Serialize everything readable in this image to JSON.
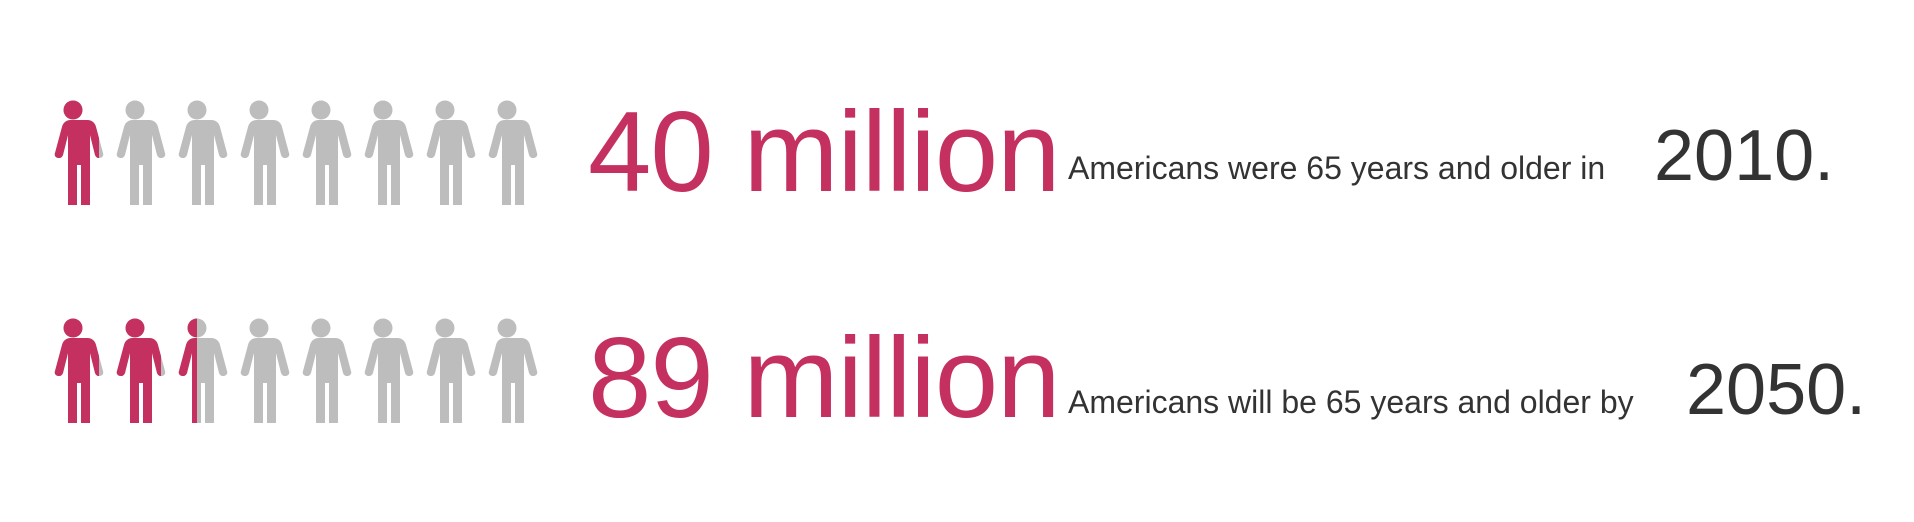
{
  "chart_data": {
    "type": "pictogram",
    "icon": "person-icon",
    "icons_per_row": 8,
    "colors": {
      "highlight": "#c4305f",
      "base": "#bdbdbd",
      "text": "#333333"
    },
    "rows": [
      {
        "filled_icons": 1,
        "headline": "40 million",
        "description": "Americans were 65 years and older in",
        "year": "2010."
      },
      {
        "filled_icons": 2.5,
        "headline": "89 million",
        "description": "Americans will be 65 years and older by",
        "year": "2050."
      }
    ]
  }
}
